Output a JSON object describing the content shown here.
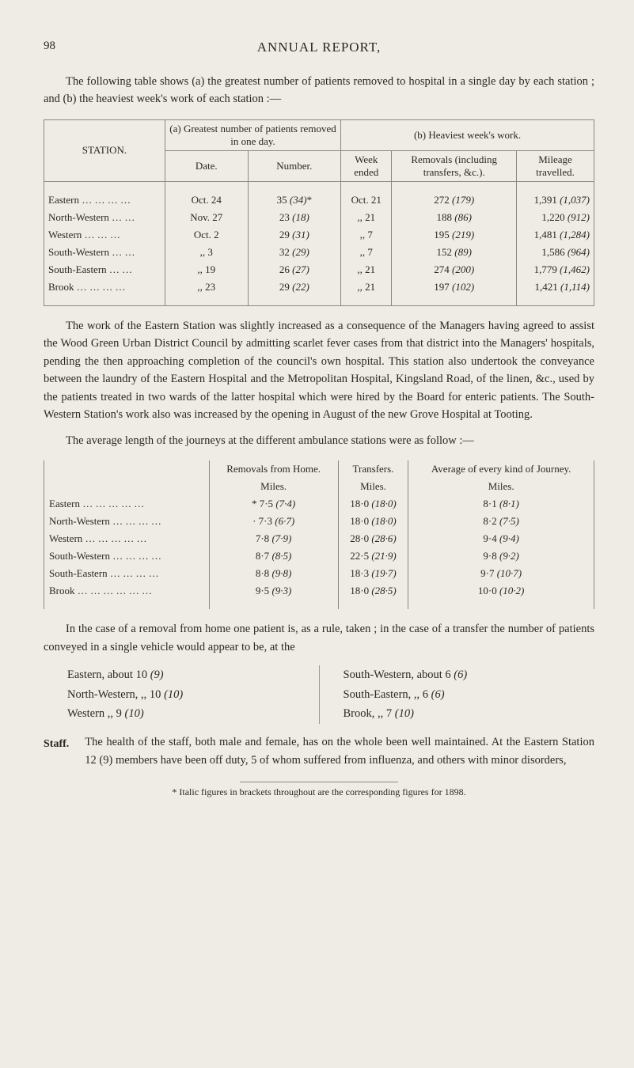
{
  "page_number": "98",
  "page_title": "ANNUAL REPORT,",
  "para1": "The following table shows (a) the greatest number of patients removed to hospital in a single day by each station ; and (b) the heaviest week's work of each station :—",
  "table1": {
    "h_station": "STATION.",
    "h_a": "(a) Greatest number of patients removed in one day.",
    "h_b": "(b) Heaviest week's work.",
    "h_date": "Date.",
    "h_number": "Number.",
    "h_week": "Week ended",
    "h_removals": "Removals (including transfers, &c.).",
    "h_mileage": "Mileage travelled.",
    "rows": [
      {
        "station": "Eastern … … … …",
        "date": "Oct. 24",
        "number": "35 (34)*",
        "week": "Oct. 21",
        "removals": "272 (179)",
        "mileage": "1,391 (1,037)"
      },
      {
        "station": "North-Western … …",
        "date": "Nov. 27",
        "number": "23 (18)",
        "week": ",, 21",
        "removals": "188 (86)",
        "mileage": "1,220 (912)"
      },
      {
        "station": "Western … … …",
        "date": "Oct. 2",
        "number": "29 (31)",
        "week": ",, 7",
        "removals": "195 (219)",
        "mileage": "1,481 (1,284)"
      },
      {
        "station": "South-Western … …",
        "date": ",, 3",
        "number": "32 (29)",
        "week": ",, 7",
        "removals": "152 (89)",
        "mileage": "1,586 (964)"
      },
      {
        "station": "South-Eastern … …",
        "date": ",, 19",
        "number": "26 (27)",
        "week": ",, 21",
        "removals": "274 (200)",
        "mileage": "1,779 (1,462)"
      },
      {
        "station": "Brook … … … …",
        "date": ",, 23",
        "number": "29 (22)",
        "week": ",, 21",
        "removals": "197 (102)",
        "mileage": "1,421 (1,114)"
      }
    ]
  },
  "para2": "The work of the Eastern Station was slightly increased as a consequence of the Managers having agreed to assist the Wood Green Urban District Council by admitting scarlet fever cases from that district into the Managers' hospitals, pending the then approaching completion of the council's own hospital. This station also undertook the conveyance between the laundry of the Eastern Hospital and the Metropolitan Hospital, Kingsland Road, of the linen, &c., used by the patients treated in two wards of the latter hospital which were hired by the Board for enteric patients. The South-Western Station's work also was increased by the opening in August of the new Grove Hospital at Tooting.",
  "para3": "The average length of the journeys at the different ambulance stations were as follow :—",
  "table2": {
    "h_removals": "Removals from Home.",
    "h_transfers": "Transfers.",
    "h_avg": "Average of every kind of Journey.",
    "sub_miles": "Miles.",
    "rows": [
      {
        "station": "Eastern … … … … …",
        "r": "* 7·5 (7·4)",
        "t": "18·0 (18·0)",
        "a": "8·1 (8·1)"
      },
      {
        "station": "North-Western … … … …",
        "r": "· 7·3 (6·7)",
        "t": "18·0 (18·0)",
        "a": "8·2 (7·5)"
      },
      {
        "station": "Western … … … … …",
        "r": "7·8 (7·9)",
        "t": "28·0 (28·6)",
        "a": "9·4 (9·4)"
      },
      {
        "station": "South-Western … … … …",
        "r": "8·7 (8·5)",
        "t": "22·5 (21·9)",
        "a": "9·8 (9·2)"
      },
      {
        "station": "South-Eastern … … … …",
        "r": "8·8 (9·8)",
        "t": "18·3 (19·7)",
        "a": "9·7 (10·7)"
      },
      {
        "station": "Brook … … … … … …",
        "r": "9·5 (9·3)",
        "t": "18·0 (28·5)",
        "a": "10·0 (10·2)"
      }
    ]
  },
  "para4": "In the case of a removal from home one patient is, as a rule, taken ; in the case of a transfer the number of patients conveyed in a single vehicle would appear to be, at the",
  "summary": {
    "left": [
      "Eastern, about 10 (9)",
      "North-Western, ,, 10 (10)",
      "Western ,, 9 (10)"
    ],
    "right": [
      "South-Western, about 6 (6)",
      "South-Eastern, ,, 6 (6)",
      "Brook, ,, 7 (10)"
    ]
  },
  "staff_label": "Staff.",
  "staff_text": "The health of the staff, both male and female, has on the whole been well maintained. At the Eastern Station 12 (9) members have been off duty, 5 of whom suffered from influenza, and others with minor disorders,",
  "footnote": "* Italic figures in brackets throughout are the corresponding figures for 1898."
}
